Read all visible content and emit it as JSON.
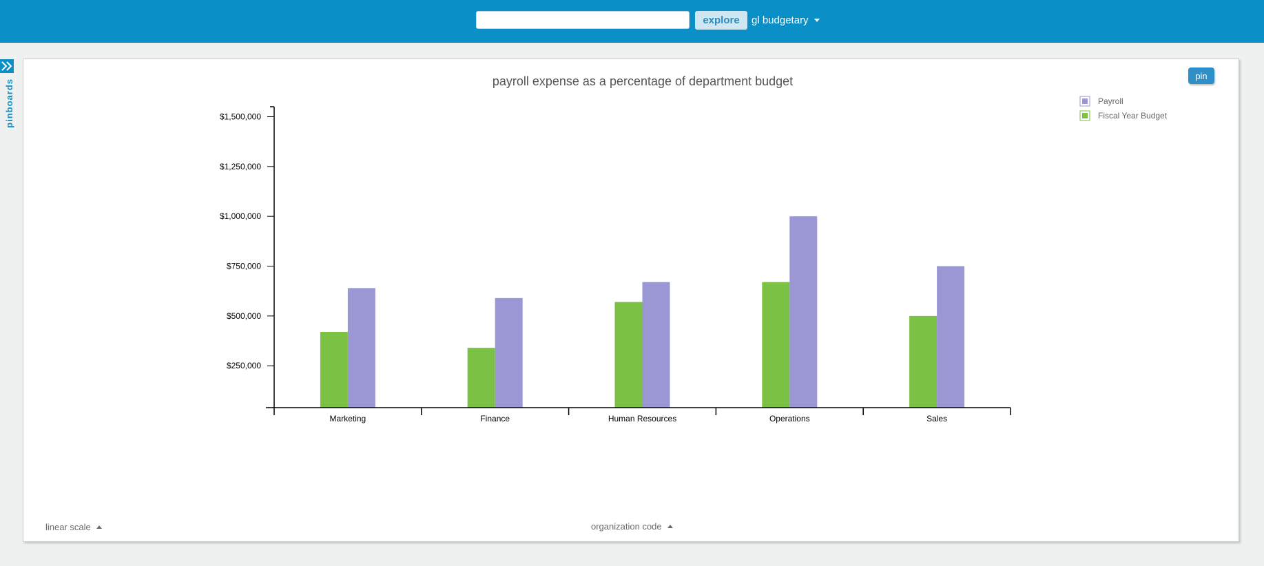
{
  "header": {
    "search": {
      "value": "",
      "placeholder": ""
    },
    "explore_label": "explore",
    "dataset_label": "gl budgetary"
  },
  "sidebar": {
    "pinboards_label": "pinboards"
  },
  "panel": {
    "pin_label": "pin",
    "scale_label": "linear scale",
    "axis_label": "organization code"
  },
  "colors": {
    "payroll": "#9a97d4",
    "budget": "#7bc143",
    "brand": "#0b8fc7"
  },
  "chart_data": {
    "type": "bar",
    "title": "payroll expense as a percentage of department budget",
    "categories": [
      "Marketing",
      "Finance",
      "Human Resources",
      "Operations",
      "Sales"
    ],
    "series": [
      {
        "name": "Fiscal Year Budget",
        "values": [
          420000,
          340000,
          570000,
          670000,
          500000
        ]
      },
      {
        "name": "Payroll",
        "values": [
          640000,
          590000,
          670000,
          1000000,
          750000
        ]
      }
    ],
    "legend_order": [
      "Payroll",
      "Fiscal Year Budget"
    ],
    "yticks": [
      250000,
      500000,
      750000,
      1000000,
      1250000,
      1500000
    ],
    "ytick_labels": [
      "$250,000",
      "$500,000",
      "$750,000",
      "$1,000,000",
      "$1,250,000",
      "$1,500,000"
    ],
    "ylim": [
      40000,
      1550000
    ],
    "legend_position": "top-right",
    "grid": false
  }
}
